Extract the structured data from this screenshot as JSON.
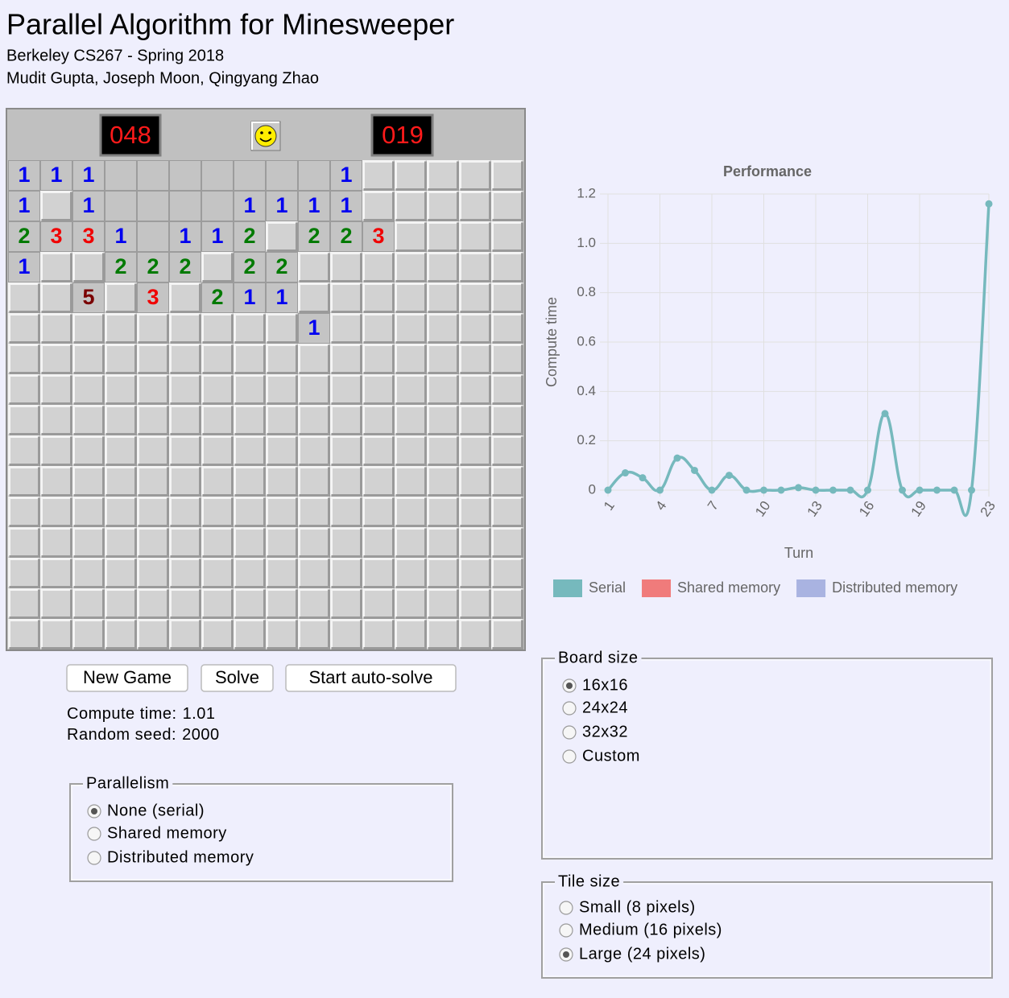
{
  "header": {
    "title": "Parallel Algorithm for Minesweeper",
    "subtitle": "Berkeley CS267 - Spring 2018",
    "authors": "Mudit Gupta, Joseph Moon, Qingyang Zhao"
  },
  "board": {
    "mines_left": "048",
    "timer": "019",
    "cells": [
      [
        1,
        1,
        1,
        null,
        null,
        null,
        null,
        null,
        null,
        null,
        1,
        null,
        null,
        null,
        null,
        null
      ],
      [
        1,
        null,
        1,
        null,
        null,
        null,
        null,
        1,
        1,
        1,
        1,
        null,
        null,
        null,
        null,
        null
      ],
      [
        2,
        3,
        3,
        1,
        null,
        1,
        1,
        2,
        null,
        2,
        2,
        3,
        null,
        null,
        null,
        null
      ],
      [
        1,
        null,
        null,
        2,
        2,
        2,
        null,
        2,
        2,
        null,
        null,
        null,
        null,
        null,
        null,
        null
      ],
      [
        null,
        null,
        5,
        null,
        3,
        null,
        2,
        1,
        1,
        null,
        null,
        null,
        null,
        null,
        null,
        null
      ],
      [
        null,
        null,
        null,
        null,
        null,
        null,
        null,
        null,
        null,
        1,
        null,
        null,
        null,
        null,
        null,
        null
      ],
      [
        null,
        null,
        null,
        null,
        null,
        null,
        null,
        null,
        null,
        null,
        null,
        null,
        null,
        null,
        null,
        null
      ],
      [
        null,
        null,
        null,
        null,
        null,
        null,
        null,
        null,
        null,
        null,
        null,
        null,
        null,
        null,
        null,
        null
      ],
      [
        null,
        null,
        null,
        null,
        null,
        null,
        null,
        null,
        null,
        null,
        null,
        null,
        null,
        null,
        null,
        null
      ],
      [
        null,
        null,
        null,
        null,
        null,
        null,
        null,
        null,
        null,
        null,
        null,
        null,
        null,
        null,
        null,
        null
      ],
      [
        null,
        null,
        null,
        null,
        null,
        null,
        null,
        null,
        null,
        null,
        null,
        null,
        null,
        null,
        null,
        null
      ],
      [
        null,
        null,
        null,
        null,
        null,
        null,
        null,
        null,
        null,
        null,
        null,
        null,
        null,
        null,
        null,
        null
      ],
      [
        null,
        null,
        null,
        null,
        null,
        null,
        null,
        null,
        null,
        null,
        null,
        null,
        null,
        null,
        null,
        null
      ],
      [
        null,
        null,
        null,
        null,
        null,
        null,
        null,
        null,
        null,
        null,
        null,
        null,
        null,
        null,
        null,
        null
      ],
      [
        null,
        null,
        null,
        null,
        null,
        null,
        null,
        null,
        null,
        null,
        null,
        null,
        null,
        null,
        null,
        null
      ],
      [
        null,
        null,
        null,
        null,
        null,
        null,
        null,
        null,
        null,
        null,
        null,
        null,
        null,
        null,
        null,
        null
      ]
    ],
    "revealed": [
      [
        true,
        true,
        true,
        true,
        true,
        true,
        true,
        true,
        true,
        true,
        true,
        false,
        false,
        false,
        false,
        false
      ],
      [
        true,
        false,
        true,
        true,
        true,
        true,
        true,
        true,
        true,
        true,
        true,
        false,
        false,
        false,
        false,
        false
      ],
      [
        true,
        true,
        true,
        true,
        true,
        true,
        true,
        true,
        false,
        true,
        true,
        true,
        false,
        false,
        false,
        false
      ],
      [
        true,
        false,
        false,
        true,
        true,
        true,
        false,
        true,
        true,
        false,
        false,
        false,
        false,
        false,
        false,
        false
      ],
      [
        false,
        false,
        true,
        false,
        true,
        false,
        true,
        true,
        true,
        false,
        false,
        false,
        false,
        false,
        false,
        false
      ],
      [
        false,
        false,
        false,
        false,
        false,
        false,
        false,
        false,
        false,
        true,
        false,
        false,
        false,
        false,
        false,
        false
      ],
      [
        false,
        false,
        false,
        false,
        false,
        false,
        false,
        false,
        false,
        false,
        false,
        false,
        false,
        false,
        false,
        false
      ],
      [
        false,
        false,
        false,
        false,
        false,
        false,
        false,
        false,
        false,
        false,
        false,
        false,
        false,
        false,
        false,
        false
      ],
      [
        false,
        false,
        false,
        false,
        false,
        false,
        false,
        false,
        false,
        false,
        false,
        false,
        false,
        false,
        false,
        false
      ],
      [
        false,
        false,
        false,
        false,
        false,
        false,
        false,
        false,
        false,
        false,
        false,
        false,
        false,
        false,
        false,
        false
      ],
      [
        false,
        false,
        false,
        false,
        false,
        false,
        false,
        false,
        false,
        false,
        false,
        false,
        false,
        false,
        false,
        false
      ],
      [
        false,
        false,
        false,
        false,
        false,
        false,
        false,
        false,
        false,
        false,
        false,
        false,
        false,
        false,
        false,
        false
      ],
      [
        false,
        false,
        false,
        false,
        false,
        false,
        false,
        false,
        false,
        false,
        false,
        false,
        false,
        false,
        false,
        false
      ],
      [
        false,
        false,
        false,
        false,
        false,
        false,
        false,
        false,
        false,
        false,
        false,
        false,
        false,
        false,
        false,
        false
      ],
      [
        false,
        false,
        false,
        false,
        false,
        false,
        false,
        false,
        false,
        false,
        false,
        false,
        false,
        false,
        false,
        false
      ],
      [
        false,
        false,
        false,
        false,
        false,
        false,
        false,
        false,
        false,
        false,
        false,
        false,
        false,
        false,
        false,
        false
      ]
    ]
  },
  "buttons": [
    "New Game",
    "Solve",
    "Start auto-solve"
  ],
  "stats": [
    {
      "label": "Compute time:",
      "value": 1.01
    },
    {
      "label": "Random seed:",
      "value": 2000
    }
  ],
  "parallelism": {
    "legend": "Parallelism",
    "options": [
      "None (serial)",
      "Shared memory",
      "Distributed memory"
    ],
    "selected": 0
  },
  "board_size": {
    "legend": "Board size",
    "options": [
      "16x16",
      "24x24",
      "32x32",
      "Custom"
    ],
    "selected": 0
  },
  "tile_size": {
    "legend": "Tile size",
    "options": [
      "Small (8 pixels)",
      "Medium (16 pixels)",
      "Large (24 pixels)"
    ],
    "selected": 2
  },
  "chart_data": {
    "type": "line",
    "title": "Performance",
    "x_label": "Turn",
    "y_label": "Compute time",
    "categories": [
      1,
      null,
      null,
      4,
      null,
      null,
      7,
      null,
      null,
      10,
      null,
      null,
      13,
      null,
      null,
      16,
      null,
      null,
      19,
      null,
      null,
      null,
      23
    ],
    "series": [
      {
        "name": "Serial",
        "color": "#76b9bd",
        "values": [
          0,
          0.07,
          0.05,
          0,
          0.13,
          0.08,
          0,
          0.06,
          0,
          0,
          0,
          0.01,
          0,
          0,
          0,
          0,
          0.31,
          0,
          0,
          0,
          0,
          0,
          1.16
        ]
      },
      {
        "name": "Shared memory",
        "color": "#f07b7b",
        "values": [
          null,
          null,
          null,
          null,
          null,
          null,
          null,
          null,
          null,
          null,
          null,
          null,
          null,
          null,
          null,
          null,
          null,
          null,
          null,
          null,
          null,
          null,
          null
        ]
      },
      {
        "name": "Distributed memory",
        "color": "#a9b3e1",
        "values": [
          null,
          null,
          null,
          null,
          null,
          null,
          null,
          null,
          null,
          null,
          null,
          null,
          null,
          null,
          null,
          null,
          null,
          null,
          null,
          null,
          null,
          null,
          null
        ]
      }
    ],
    "ylim": [
      0,
      1.2
    ],
    "yticks": [
      0,
      0.2,
      0.4,
      0.6,
      0.8,
      {
        "value": 1,
        "label": "1.0"
      },
      1.2
    ],
    "grid": true,
    "legend": "bottom"
  }
}
